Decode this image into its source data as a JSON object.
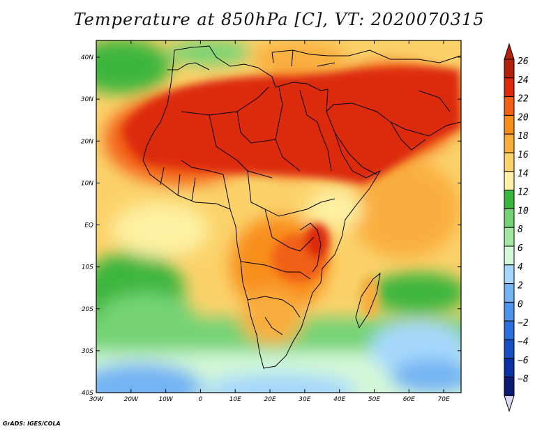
{
  "title": "Temperature at 850hPa [C], VT: 2020070315",
  "credit": "GrADS: IGES/COLA",
  "x_ticks": [
    "30W",
    "20W",
    "10W",
    "0",
    "10E",
    "20E",
    "30E",
    "40E",
    "50E",
    "60E",
    "70E"
  ],
  "y_ticks": [
    "40N",
    "30N",
    "20N",
    "10N",
    "EQ",
    "10S",
    "20S",
    "30S",
    "40S"
  ],
  "colorbar": {
    "labels": [
      "26",
      "24",
      "22",
      "20",
      "18",
      "16",
      "14",
      "12",
      "10",
      "8",
      "6",
      "4",
      "2",
      "0",
      "−2",
      "−4",
      "−6",
      "−8"
    ],
    "colors": [
      "#b3200c",
      "#dc2a0e",
      "#f26014",
      "#f88e1a",
      "#f9ae3c",
      "#fbd26a",
      "#fdf0a2",
      "#3cb63c",
      "#74d374",
      "#a2e6a2",
      "#d2f8d8",
      "#a6d8fb",
      "#73b4f3",
      "#4c93ea",
      "#2b6fdc",
      "#1650c5",
      "#0b31a6",
      "#0b1a74"
    ],
    "top_arrow_color": "#b3200c",
    "bottom_arrow_color": "#d8daf5"
  }
}
